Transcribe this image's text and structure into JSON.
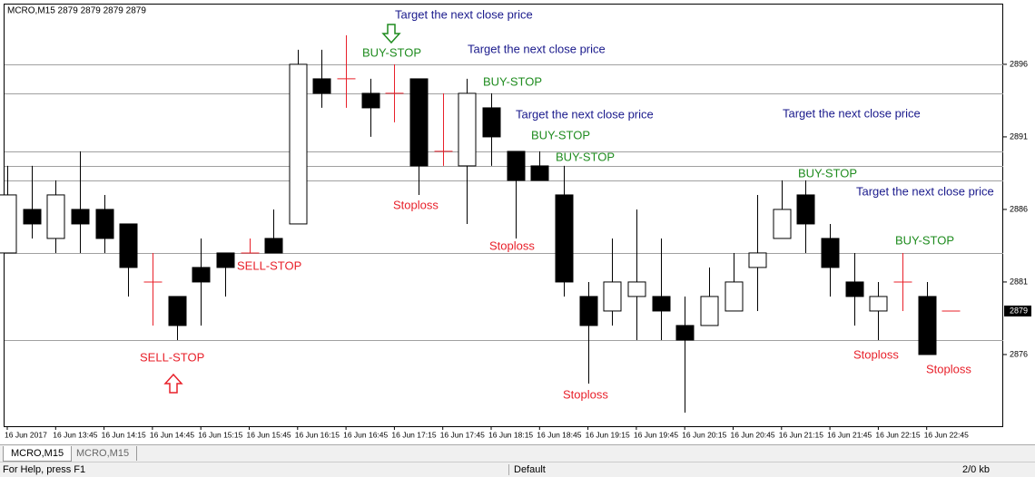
{
  "chart_data": {
    "type": "candlestick",
    "title": "MCRO,M15  2879 2879 2879 2879",
    "categories": [
      "16 Jun 2017",
      null,
      "16 Jun 13:45",
      null,
      "16 Jun 14:15",
      null,
      "16 Jun 14:45",
      null,
      "16 Jun 15:15",
      null,
      "16 Jun 15:45",
      null,
      "16 Jun 16:15",
      null,
      "16 Jun 16:45",
      null,
      "16 Jun 17:15",
      null,
      "16 Jun 17:45",
      null,
      "16 Jun 18:15",
      null,
      "16 Jun 18:45",
      null,
      "16 Jun 19:15",
      null,
      "16 Jun 19:45",
      null,
      "16 Jun 20:15",
      null,
      "16 Jun 20:45",
      null,
      "16 Jun 21:15",
      null,
      "16 Jun 21:45",
      null,
      "16 Jun 22:15",
      null,
      "16 Jun 22:45",
      null
    ],
    "open": [
      2883,
      2886,
      2884,
      2886,
      2886,
      2885,
      2881,
      2880,
      2882,
      2883,
      2883,
      2884,
      2885,
      2895,
      2895,
      2894,
      2894,
      2895,
      2890,
      2889,
      2893,
      2890,
      2889,
      2887,
      2880,
      2879,
      2880,
      2880,
      2878,
      2878,
      2879,
      2882,
      2884,
      2887,
      2884,
      2881,
      2879,
      2881,
      2880,
      2879
    ],
    "high": [
      2889,
      2889,
      2888,
      2890,
      2887,
      2885,
      2883,
      2880,
      2884,
      2883,
      2884,
      2886,
      2897,
      2897,
      2898,
      2895,
      2896,
      2895,
      2894,
      2895,
      2894,
      2890,
      2890,
      2889,
      2881,
      2884,
      2886,
      2884,
      2880,
      2882,
      2883,
      2887,
      2888,
      2888,
      2885,
      2883,
      2881,
      2883,
      2881,
      2879
    ],
    "low": [
      2883,
      2884,
      2883,
      2883,
      2883,
      2880,
      2878,
      2877,
      2878,
      2880,
      2883,
      2883,
      2885,
      2893,
      2893,
      2891,
      2892,
      2887,
      2889,
      2885,
      2889,
      2884,
      2888,
      2880,
      2874,
      2878,
      2877,
      2877,
      2872,
      2878,
      2879,
      2879,
      2884,
      2883,
      2880,
      2878,
      2877,
      2879,
      2876,
      2879
    ],
    "close": [
      2887,
      2885,
      2887,
      2885,
      2884,
      2882,
      2881,
      2878,
      2881,
      2882,
      2883,
      2883,
      2896,
      2894,
      2895,
      2893,
      2894,
      2889,
      2890,
      2894,
      2891,
      2888,
      2888,
      2881,
      2878,
      2881,
      2881,
      2879,
      2877,
      2880,
      2881,
      2883,
      2886,
      2885,
      2882,
      2880,
      2880,
      2881,
      2876,
      2879
    ],
    "colors": {
      "up": "#ffffff",
      "down": "#000000",
      "doji": "#e8202a"
    },
    "levels": [
      2896,
      2894,
      2890,
      2889,
      2888,
      2883,
      2877
    ],
    "current_price": 2879,
    "ylim": [
      2871.06,
      2900.12
    ],
    "yticks": [
      2876,
      2881,
      2886,
      2891,
      2896
    ],
    "annotations": [
      {
        "text": "Target the next close price",
        "color": "#1a1a8c"
      },
      {
        "text": "Target the next close price",
        "color": "#1a1a8c"
      },
      {
        "text": "Target the next close price",
        "color": "#1a1a8c"
      },
      {
        "text": "Target the next close price",
        "color": "#1a1a8c"
      },
      {
        "text": "Target the next close price",
        "color": "#1a1a8c"
      },
      {
        "text": "BUY-STOP",
        "color": "#1f8c1f"
      },
      {
        "text": "BUY-STOP",
        "color": "#1f8c1f"
      },
      {
        "text": "BUY-STOP",
        "color": "#1f8c1f"
      },
      {
        "text": "BUY-STOP",
        "color": "#1f8c1f"
      },
      {
        "text": "BUY-STOP",
        "color": "#1f8c1f"
      },
      {
        "text": "BUY-STOP",
        "color": "#1f8c1f"
      },
      {
        "text": "SELL-STOP",
        "color": "#e8202a"
      },
      {
        "text": "SELL-STOP",
        "color": "#e8202a"
      },
      {
        "text": "Stoploss",
        "color": "#e8202a"
      },
      {
        "text": "Stoploss",
        "color": "#e8202a"
      },
      {
        "text": "Stoploss",
        "color": "#e8202a"
      },
      {
        "text": "Stoploss",
        "color": "#e8202a"
      },
      {
        "text": "Stoploss",
        "color": "#e8202a"
      }
    ]
  },
  "tabs": [
    "MCRO,M15",
    "MCRO,M15"
  ],
  "status_bar": {
    "help": "For Help, press F1",
    "profile": "Default",
    "traffic": "2/0 kb"
  }
}
